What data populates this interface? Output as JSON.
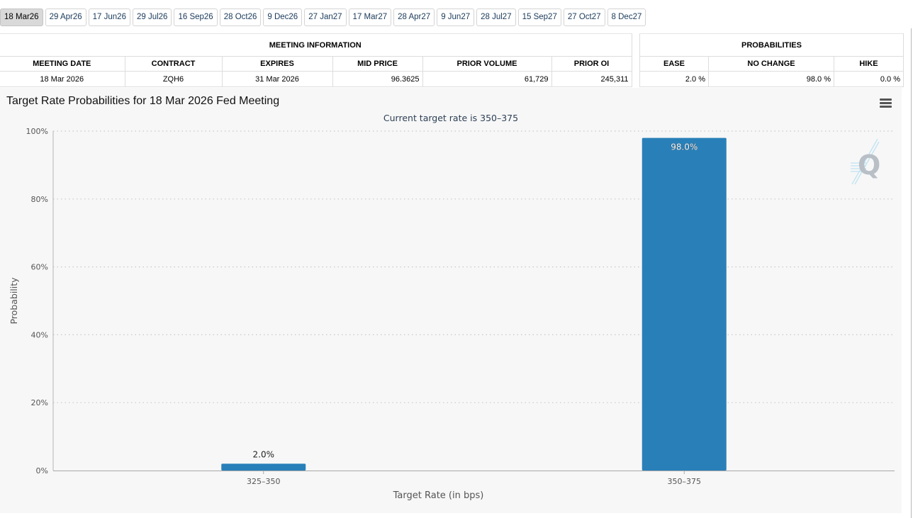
{
  "tabs": [
    {
      "label": "18 Mar26",
      "active": true
    },
    {
      "label": "29 Apr26"
    },
    {
      "label": "17 Jun26"
    },
    {
      "label": "29 Jul26"
    },
    {
      "label": "16 Sep26"
    },
    {
      "label": "28 Oct26"
    },
    {
      "label": "9 Dec26"
    },
    {
      "label": "27 Jan27"
    },
    {
      "label": "17 Mar27"
    },
    {
      "label": "28 Apr27"
    },
    {
      "label": "9 Jun27"
    },
    {
      "label": "28 Jul27"
    },
    {
      "label": "15 Sep27"
    },
    {
      "label": "27 Oct27"
    },
    {
      "label": "8 Dec27"
    }
  ],
  "meeting_info": {
    "group_label": "MEETING INFORMATION",
    "headers": {
      "meeting_date": "MEETING DATE",
      "contract": "CONTRACT",
      "expires": "EXPIRES",
      "mid_price": "MID PRICE",
      "prior_volume": "PRIOR VOLUME",
      "prior_oi": "PRIOR OI"
    },
    "row": {
      "meeting_date": "18 Mar 2026",
      "contract": "ZQH6",
      "expires": "31 Mar 2026",
      "mid_price": "96.3625",
      "prior_volume": "61,729",
      "prior_oi": "245,311"
    }
  },
  "probabilities": {
    "group_label": "PROBABILITIES",
    "headers": {
      "ease": "EASE",
      "no_change": "NO CHANGE",
      "hike": "HIKE"
    },
    "row": {
      "ease": "2.0 %",
      "no_change": "98.0 %",
      "hike": "0.0 %"
    }
  },
  "chart_data": {
    "type": "bar",
    "title": "Target Rate Probabilities for 18 Mar 2026 Fed Meeting",
    "subtitle": "Current target rate is 350–375",
    "xlabel": "Target Rate (in bps)",
    "ylabel": "Probability",
    "categories": [
      "325–350",
      "350–375"
    ],
    "values": [
      2.0,
      98.0
    ],
    "data_labels": [
      "2.0%",
      "98.0%"
    ],
    "ylim": [
      0,
      100
    ],
    "yticks": [
      0,
      20,
      40,
      60,
      80,
      100
    ],
    "ytick_labels": [
      "0%",
      "20%",
      "40%",
      "60%",
      "80%",
      "100%"
    ],
    "grid": true,
    "legend": "none",
    "bar_color": "#2980b9"
  },
  "icons": {
    "menu": "hamburger-menu-icon",
    "watermark": "q-logo-icon"
  }
}
